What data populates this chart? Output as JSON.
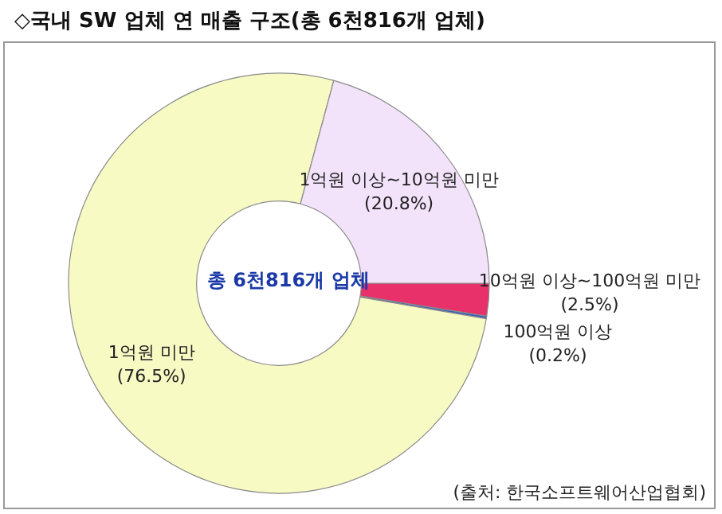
{
  "chart_data": {
    "type": "donut",
    "title": "◇국내 SW 업체 연 매출 구조(총 6천816개 업체)",
    "categories": [
      "10억원 이상~100억원 미만",
      "100억원 이상",
      "1억원 미만",
      "1억원 이상~10억원 미만"
    ],
    "values": [
      2.5,
      0.2,
      76.5,
      20.8
    ],
    "colors": [
      "#e8306a",
      "#3a5fc0",
      "#f8fac4",
      "#f3e3fa"
    ],
    "value_labels": [
      "(2.5%)",
      "(0.2%)",
      "(76.5%)",
      "(20.8%)"
    ],
    "legend": false,
    "annotations": [
      "총 6천816개 업체",
      "(출처: 한국소프트웨어산업협회)"
    ]
  }
}
